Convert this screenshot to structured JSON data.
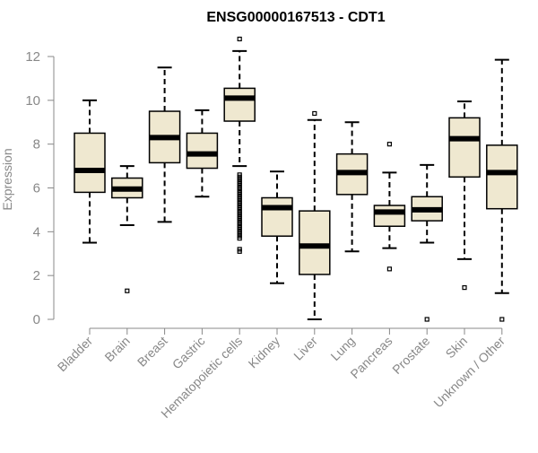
{
  "chart_data": {
    "type": "boxplot",
    "title": "ENSG00000167513 - CDT1",
    "ylabel": "Expression",
    "xlabel": "",
    "ylim": [
      0,
      12.3
    ],
    "yticks": [
      0,
      2,
      4,
      6,
      8,
      10,
      12
    ],
    "box_fill": "#efe8d0",
    "box_stroke": "#000000",
    "axis_color": "#888888",
    "categories": [
      "Bladder",
      "Brain",
      "Breast",
      "Gastric",
      "Hematopoietic cells",
      "Kidney",
      "Liver",
      "Lung",
      "Pancreas",
      "Prostate",
      "Skin",
      "Unknown / Other"
    ],
    "boxes": [
      {
        "name": "Bladder",
        "whisker_low": 3.5,
        "q1": 5.8,
        "median": 6.8,
        "q3": 8.5,
        "whisker_high": 10.0,
        "outliers": []
      },
      {
        "name": "Brain",
        "whisker_low": 4.3,
        "q1": 5.55,
        "median": 5.95,
        "q3": 6.45,
        "whisker_high": 7.0,
        "outliers": [
          1.3
        ]
      },
      {
        "name": "Breast",
        "whisker_low": 4.45,
        "q1": 7.15,
        "median": 8.3,
        "q3": 9.5,
        "whisker_high": 11.5,
        "outliers": []
      },
      {
        "name": "Gastric",
        "whisker_low": 5.6,
        "q1": 6.9,
        "median": 7.55,
        "q3": 8.5,
        "whisker_high": 9.55,
        "outliers": []
      },
      {
        "name": "Hematopoietic cells",
        "whisker_low": 7.0,
        "q1": 9.05,
        "median": 10.1,
        "q3": 10.55,
        "whisker_high": 12.25,
        "outliers": [
          12.8,
          6.6,
          6.5,
          6.4,
          6.3,
          6.2,
          6.1,
          6.0,
          5.9,
          5.8,
          5.7,
          5.6,
          5.5,
          5.4,
          5.3,
          5.2,
          5.1,
          5.0,
          4.9,
          4.8,
          4.7,
          4.6,
          4.5,
          4.4,
          4.3,
          4.2,
          4.1,
          4.0,
          3.9,
          3.8,
          3.7,
          3.2,
          3.1
        ]
      },
      {
        "name": "Kidney",
        "whisker_low": 1.65,
        "q1": 3.8,
        "median": 5.1,
        "q3": 5.55,
        "whisker_high": 6.75,
        "outliers": []
      },
      {
        "name": "Liver",
        "whisker_low": 0.0,
        "q1": 2.05,
        "median": 3.35,
        "q3": 4.95,
        "whisker_high": 9.1,
        "outliers": [
          9.4
        ]
      },
      {
        "name": "Lung",
        "whisker_low": 3.1,
        "q1": 5.7,
        "median": 6.7,
        "q3": 7.55,
        "whisker_high": 9.0,
        "outliers": []
      },
      {
        "name": "Pancreas",
        "whisker_low": 3.25,
        "q1": 4.25,
        "median": 4.9,
        "q3": 5.2,
        "whisker_high": 6.7,
        "outliers": [
          8.0,
          2.3
        ]
      },
      {
        "name": "Prostate",
        "whisker_low": 3.5,
        "q1": 4.5,
        "median": 5.0,
        "q3": 5.6,
        "whisker_high": 7.05,
        "outliers": [
          0.0
        ]
      },
      {
        "name": "Skin",
        "whisker_low": 2.75,
        "q1": 6.5,
        "median": 8.25,
        "q3": 9.2,
        "whisker_high": 9.95,
        "outliers": [
          1.45
        ]
      },
      {
        "name": "Unknown / Other",
        "whisker_low": 1.2,
        "q1": 5.05,
        "median": 6.7,
        "q3": 7.95,
        "whisker_high": 11.85,
        "outliers": [
          0.0
        ]
      }
    ]
  }
}
